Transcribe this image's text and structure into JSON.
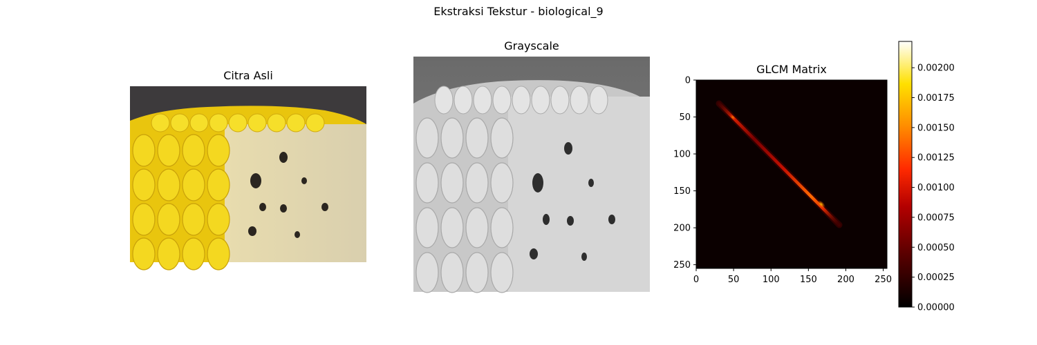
{
  "figure": {
    "suptitle": "Ekstraksi Tekstur - biological_9"
  },
  "panels": {
    "original": {
      "title": "Citra Asli",
      "image_desc_icon": "corn-cob-color-photo"
    },
    "grayscale": {
      "title": "Grayscale",
      "image_desc_icon": "corn-cob-grayscale-photo"
    },
    "glcm": {
      "title": "GLCM Matrix"
    }
  },
  "colors": {
    "colormap": [
      "#000000",
      "#5a0000",
      "#b40000",
      "#ff2a00",
      "#ff8c00",
      "#ffe000",
      "#ffffff"
    ],
    "corn_yellow": "#f3d21a",
    "glcm_background": "#0b0000"
  },
  "chart_data": {
    "type": "heatmap",
    "title": "GLCM Matrix",
    "x_ticks": [
      0,
      50,
      100,
      150,
      200,
      250
    ],
    "y_ticks": [
      0,
      50,
      100,
      150,
      200,
      250
    ],
    "xlim": [
      0,
      255
    ],
    "ylim": [
      255,
      0
    ],
    "diagonal_band": {
      "start": 32,
      "end": 198,
      "peak_at": 165,
      "secondary_peak_at": 52
    },
    "colorbar": {
      "min": 0.0,
      "max": 0.00222,
      "ticks": [
        0.0,
        0.00025,
        0.0005,
        0.00075,
        0.001,
        0.00125,
        0.0015,
        0.00175,
        0.002
      ],
      "tick_labels": [
        "0.00000",
        "0.00025",
        "0.00050",
        "0.00075",
        "0.00100",
        "0.00125",
        "0.00150",
        "0.00175",
        "0.00200"
      ]
    }
  }
}
